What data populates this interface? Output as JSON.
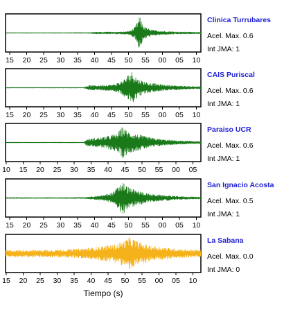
{
  "chart_data": {
    "type": "line",
    "xlabel": "Tiempo (s)",
    "panels": [
      {
        "station": "Clinica Turrubares",
        "accel_label": "Acel. Max. 0.6",
        "jma_label": "Int JMA: 1",
        "color": "#1a7a1a",
        "tick_labels": [
          "15",
          "20",
          "25",
          "30",
          "35",
          "40",
          "45",
          "50",
          "55",
          "00",
          "05",
          "10"
        ],
        "trace": [
          [
            10,
            0.02
          ],
          [
            20,
            0.02
          ],
          [
            30,
            0.02
          ],
          [
            38,
            0.03
          ],
          [
            40,
            0.06
          ],
          [
            42,
            0.05
          ],
          [
            44,
            0.07
          ],
          [
            46,
            0.06
          ],
          [
            48,
            0.07
          ],
          [
            50,
            0.08
          ],
          [
            51,
            0.12
          ],
          [
            52,
            0.18
          ],
          [
            53,
            0.35
          ],
          [
            54,
            0.75
          ],
          [
            54.5,
            1.0
          ],
          [
            55,
            0.85
          ],
          [
            55.5,
            0.6
          ],
          [
            56,
            0.45
          ],
          [
            57,
            0.3
          ],
          [
            58,
            0.22
          ],
          [
            60,
            0.15
          ],
          [
            62,
            0.12
          ],
          [
            65,
            0.09
          ],
          [
            68,
            0.07
          ],
          [
            71,
            0.06
          ],
          [
            75,
            0.05
          ]
        ]
      },
      {
        "station": "CAIS Puriscal",
        "accel_label": "Acel. Max. 0.6",
        "jma_label": "Int JMA: 1",
        "color": "#1a7a1a",
        "tick_labels": [
          "15",
          "20",
          "25",
          "30",
          "35",
          "40",
          "45",
          "50",
          "55",
          "00",
          "05",
          "10"
        ],
        "trace": [
          [
            10,
            0.02
          ],
          [
            20,
            0.02
          ],
          [
            30,
            0.02
          ],
          [
            36,
            0.02
          ],
          [
            37,
            0.1
          ],
          [
            38,
            0.15
          ],
          [
            40,
            0.14
          ],
          [
            42,
            0.16
          ],
          [
            44,
            0.18
          ],
          [
            46,
            0.2
          ],
          [
            48,
            0.35
          ],
          [
            50,
            0.6
          ],
          [
            51,
            0.85
          ],
          [
            52,
            1.0
          ],
          [
            53,
            0.8
          ],
          [
            54,
            0.55
          ],
          [
            56,
            0.4
          ],
          [
            58,
            0.3
          ],
          [
            60,
            0.25
          ],
          [
            62,
            0.2
          ],
          [
            65,
            0.15
          ],
          [
            68,
            0.12
          ],
          [
            71,
            0.09
          ],
          [
            75,
            0.07
          ]
        ]
      },
      {
        "station": "Paraiso UCR",
        "accel_label": "Acel. Max. 0.6",
        "jma_label": "Int JMA: 1",
        "color": "#1a7a1a",
        "tick_labels": [
          "10",
          "15",
          "20",
          "25",
          "30",
          "35",
          "40",
          "45",
          "50",
          "55",
          "00",
          "05"
        ],
        "trace": [
          [
            5,
            0.02
          ],
          [
            15,
            0.02
          ],
          [
            25,
            0.02
          ],
          [
            31,
            0.02
          ],
          [
            32,
            0.2
          ],
          [
            34,
            0.25
          ],
          [
            36,
            0.3
          ],
          [
            38,
            0.35
          ],
          [
            40,
            0.45
          ],
          [
            42,
            0.55
          ],
          [
            43,
            0.75
          ],
          [
            44,
            1.0
          ],
          [
            45,
            0.8
          ],
          [
            46,
            0.65
          ],
          [
            48,
            0.55
          ],
          [
            50,
            0.45
          ],
          [
            52,
            0.35
          ],
          [
            55,
            0.25
          ],
          [
            58,
            0.18
          ],
          [
            62,
            0.12
          ],
          [
            66,
            0.09
          ],
          [
            70,
            0.07
          ]
        ]
      },
      {
        "station": "San Ignacio Acosta",
        "accel_label": "Acel. Max. 0.5",
        "jma_label": "Int JMA: 1",
        "color": "#1a7a1a",
        "tick_labels": [
          "15",
          "20",
          "25",
          "30",
          "35",
          "40",
          "45",
          "50",
          "55",
          "00",
          "05",
          "10"
        ],
        "trace": [
          [
            10,
            0.03
          ],
          [
            20,
            0.03
          ],
          [
            30,
            0.03
          ],
          [
            36,
            0.04
          ],
          [
            38,
            0.07
          ],
          [
            40,
            0.1
          ],
          [
            42,
            0.15
          ],
          [
            44,
            0.25
          ],
          [
            46,
            0.4
          ],
          [
            47,
            0.6
          ],
          [
            48,
            0.85
          ],
          [
            49,
            1.0
          ],
          [
            50,
            0.8
          ],
          [
            51,
            0.65
          ],
          [
            53,
            0.5
          ],
          [
            55,
            0.4
          ],
          [
            58,
            0.25
          ],
          [
            62,
            0.18
          ],
          [
            66,
            0.12
          ],
          [
            70,
            0.08
          ],
          [
            75,
            0.06
          ]
        ]
      },
      {
        "station": "La Sabana",
        "accel_label": "Acel. Max. 0.0",
        "jma_label": "Int JMA: 0",
        "color": "#f5b21a",
        "tick_labels": [
          "15",
          "20",
          "25",
          "30",
          "35",
          "40",
          "45",
          "50",
          "55",
          "00",
          "05",
          "10"
        ],
        "trace": [
          [
            10,
            0.2
          ],
          [
            20,
            0.22
          ],
          [
            30,
            0.25
          ],
          [
            35,
            0.3
          ],
          [
            38,
            0.35
          ],
          [
            40,
            0.4
          ],
          [
            42,
            0.45
          ],
          [
            44,
            0.5
          ],
          [
            46,
            0.55
          ],
          [
            48,
            0.65
          ],
          [
            50,
            0.85
          ],
          [
            51,
            1.0
          ],
          [
            52,
            0.95
          ],
          [
            53,
            0.85
          ],
          [
            54,
            0.75
          ],
          [
            56,
            0.6
          ],
          [
            58,
            0.5
          ],
          [
            60,
            0.45
          ],
          [
            62,
            0.4
          ],
          [
            64,
            0.35
          ],
          [
            66,
            0.3
          ],
          [
            68,
            0.28
          ],
          [
            70,
            0.25
          ],
          [
            75,
            0.22
          ]
        ]
      }
    ]
  }
}
